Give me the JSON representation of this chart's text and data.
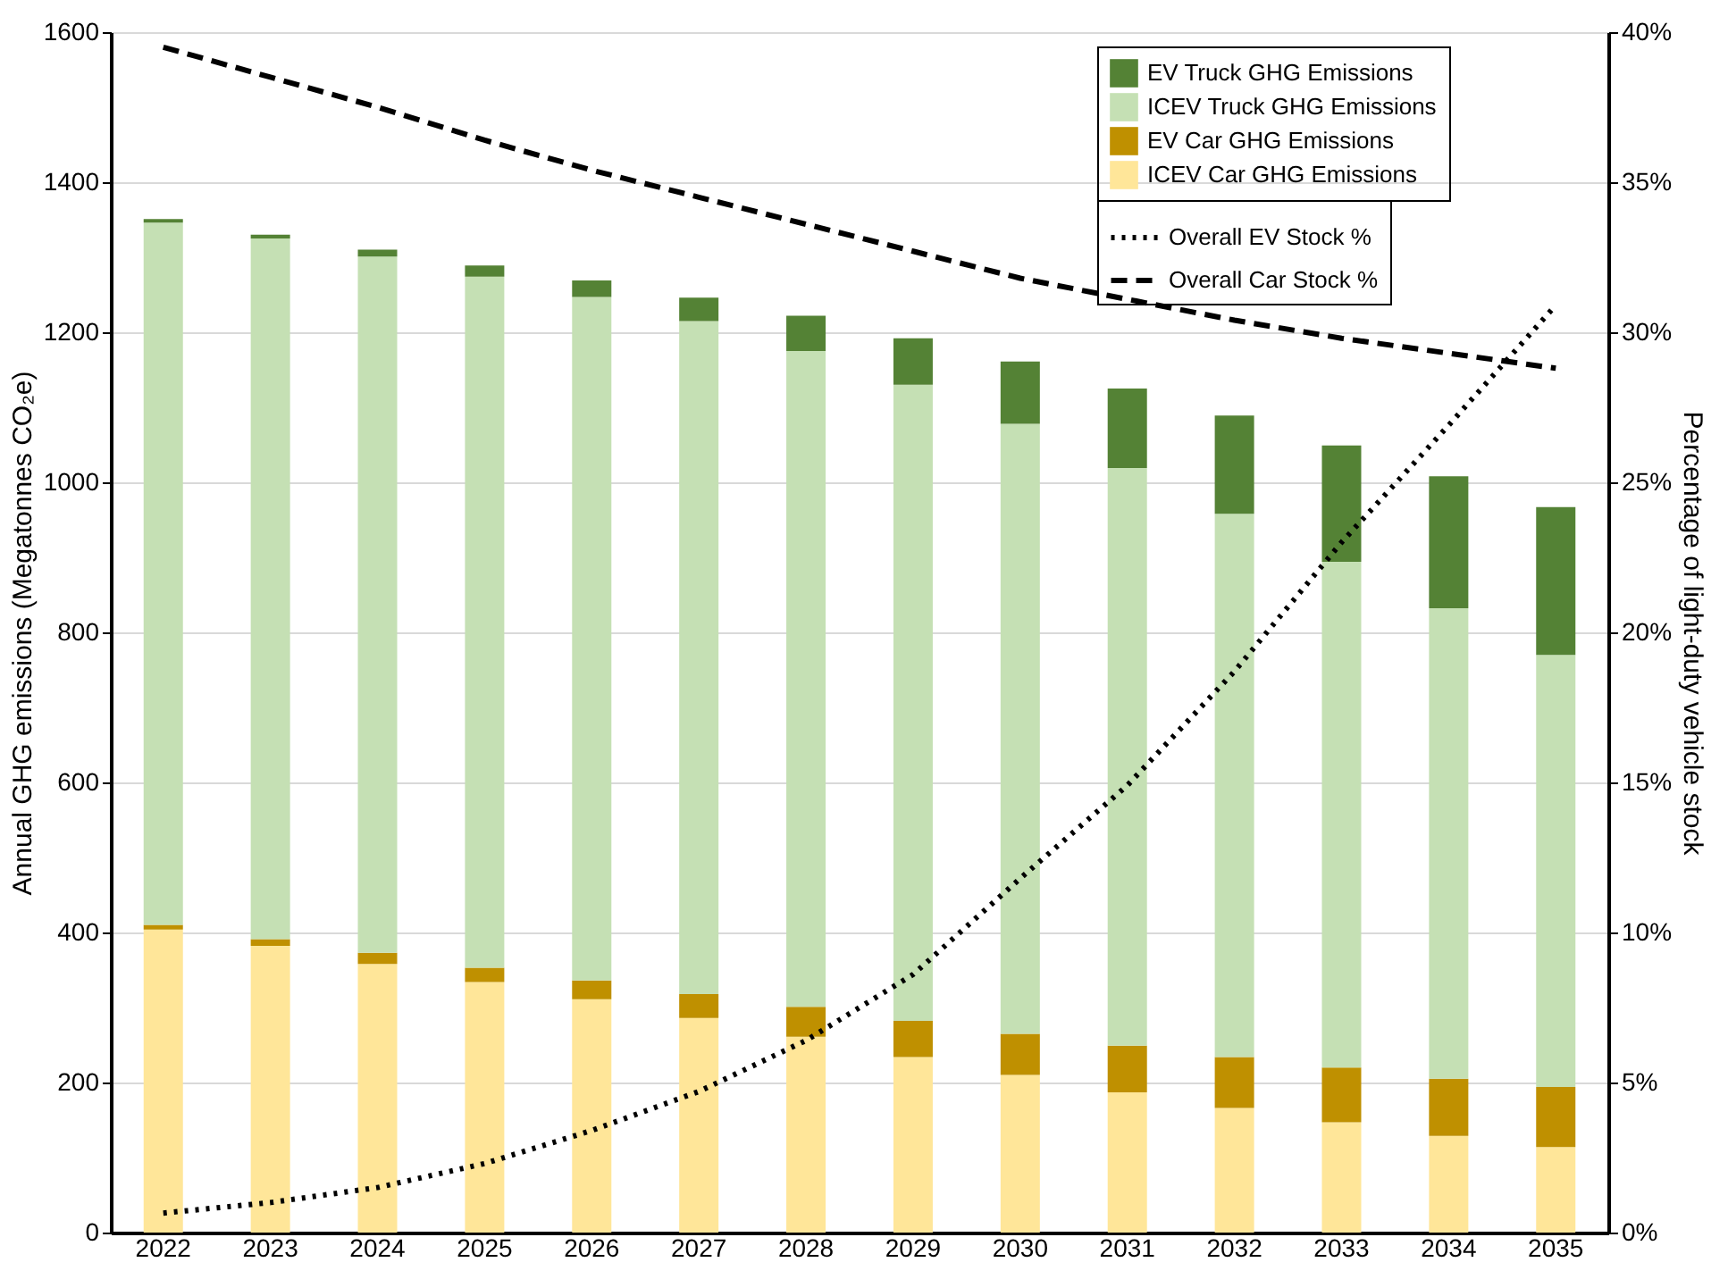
{
  "chart_data": {
    "type": "bar",
    "stacked": true,
    "categories": [
      "2022",
      "2023",
      "2024",
      "2025",
      "2026",
      "2027",
      "2028",
      "2029",
      "2030",
      "2031",
      "2032",
      "2033",
      "2034",
      "2035"
    ],
    "ylabel": "Annual GHG emissions (Megatonnes CO₂e)",
    "y2label": "Percentage of light-duty vehicle stock",
    "ylim": [
      0,
      1600
    ],
    "yticks": [
      0,
      200,
      400,
      600,
      800,
      1000,
      1200,
      1400,
      1600
    ],
    "y2lim": [
      0,
      40
    ],
    "y2ticks": [
      {
        "value": 0,
        "label": "0%"
      },
      {
        "value": 5,
        "label": "5%"
      },
      {
        "value": 10,
        "label": "10%"
      },
      {
        "value": 15,
        "label": "15%"
      },
      {
        "value": 20,
        "label": "20%"
      },
      {
        "value": 25,
        "label": "25%"
      },
      {
        "value": 30,
        "label": "30%"
      },
      {
        "value": 35,
        "label": "35%"
      },
      {
        "value": 40,
        "label": "40%"
      }
    ],
    "grid": "y",
    "legend": "top right",
    "series": [
      {
        "name": "ICEV Car GHG Emissions",
        "color": "#ffe699",
        "values": [
          404,
          382,
          358,
          334,
          311,
          286,
          261,
          234,
          210,
          187,
          166,
          147,
          129,
          114
        ]
      },
      {
        "name": "EV Car GHG Emissions",
        "color": "#bf9000",
        "values": [
          6,
          9,
          15,
          19,
          25,
          32,
          40,
          48,
          55,
          62,
          68,
          73,
          76,
          80
        ]
      },
      {
        "name": "ICEV Truck GHG Emissions",
        "color": "#c5e0b4",
        "values": [
          936,
          934,
          928,
          921,
          911,
          897,
          874,
          848,
          813,
          770,
          724,
          674,
          627,
          576
        ]
      },
      {
        "name": "EV Truck GHG Emissions",
        "color": "#548235",
        "values": [
          5,
          5,
          9,
          15,
          22,
          31,
          47,
          62,
          83,
          106,
          131,
          155,
          176,
          197
        ]
      },
      {
        "name": "Overall EV Stock %",
        "type": "line",
        "axis": "y2",
        "line_style": "dotted",
        "color": "#000000",
        "values": [
          0.65,
          1.0,
          1.5,
          2.3,
          3.4,
          4.7,
          6.4,
          8.6,
          11.8,
          14.9,
          18.7,
          23.0,
          26.9,
          30.9
        ]
      },
      {
        "name": "Overall Car Stock %",
        "type": "line",
        "axis": "y2",
        "line_style": "dashed",
        "color": "#000000",
        "values": [
          39.5,
          38.5,
          37.5,
          36.4,
          35.4,
          34.5,
          33.6,
          32.7,
          31.8,
          31.1,
          30.4,
          29.8,
          29.3,
          28.8
        ]
      }
    ]
  }
}
